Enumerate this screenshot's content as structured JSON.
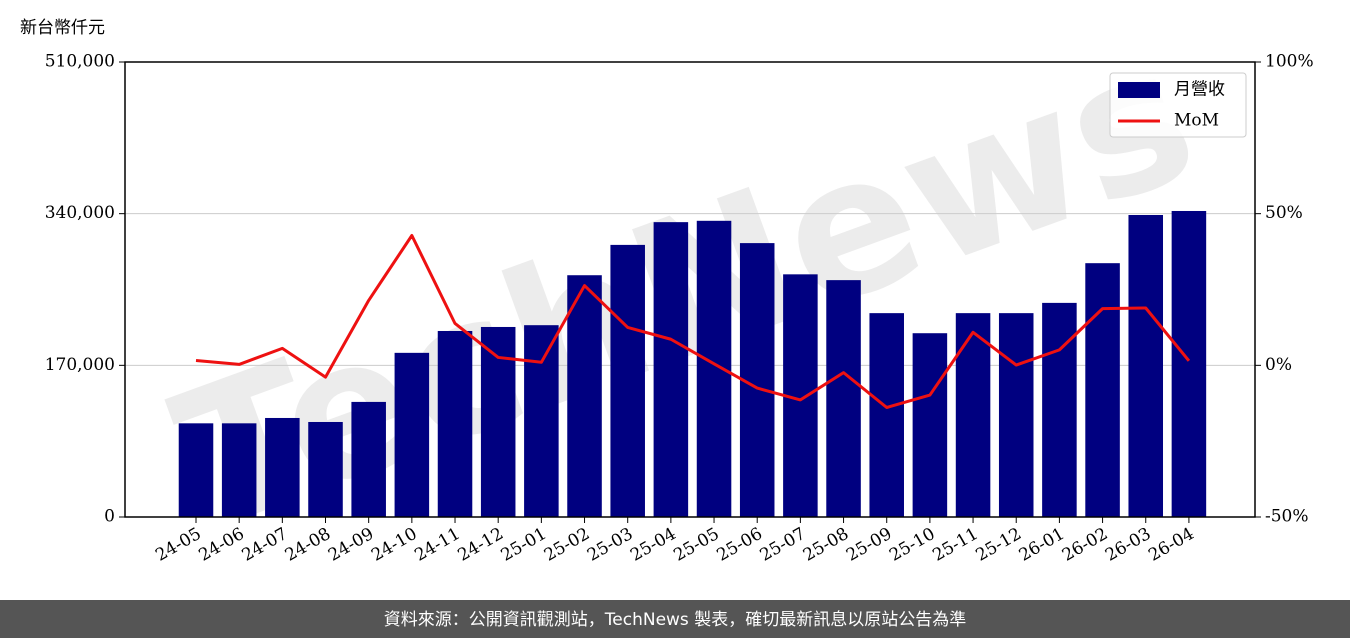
{
  "chart_data": {
    "type": "bar_line",
    "y_label": "新台幣仟元",
    "watermark": "TechNews",
    "footer": "資料來源：公開資訊觀測站，TechNews 製表，確切最新訊息以原站公告為準",
    "categories": [
      "24-05",
      "24-06",
      "24-07",
      "24-08",
      "24-09",
      "24-10",
      "24-11",
      "24-12",
      "25-01",
      "25-02",
      "25-03",
      "25-04",
      "25-05",
      "25-06",
      "25-07",
      "25-08",
      "25-09",
      "25-10",
      "25-11",
      "25-12",
      "26-01",
      "26-02",
      "26-03",
      "26-04"
    ],
    "series": [
      {
        "name": "月營收",
        "type": "bar",
        "color": "#000080",
        "values": [
          105000,
          105000,
          111000,
          106500,
          129000,
          184000,
          208500,
          213000,
          215000,
          271000,
          305000,
          330500,
          332000,
          307000,
          272000,
          265500,
          228500,
          206000,
          228500,
          228500,
          240000,
          284500,
          338500,
          343000
        ]
      },
      {
        "name": "MoM",
        "type": "line",
        "axis": "y2",
        "color": "#ee1111",
        "values": [
          1.6,
          0.3,
          5.6,
          -3.9,
          21.4,
          42.8,
          13.8,
          2.6,
          1.0,
          26.3,
          12.5,
          8.6,
          0.5,
          -7.5,
          -11.4,
          -2.4,
          -13.9,
          -9.8,
          10.9,
          0.1,
          5.1,
          18.7,
          18.9,
          1.5
        ]
      }
    ],
    "ylim": [
      0,
      510000
    ],
    "yticks": [
      0,
      {
        "value": 170000,
        "label": "170,000"
      },
      {
        "value": 340000,
        "label": "340,000"
      },
      {
        "value": 510000,
        "label": "510,000"
      }
    ],
    "y2lim": [
      -50,
      100
    ],
    "y2ticks": [
      {
        "value": -50,
        "label": "-50%"
      },
      {
        "value": 0,
        "label": "0%"
      },
      {
        "value": 50,
        "label": "50%"
      },
      {
        "value": 100,
        "label": "100%"
      }
    ],
    "grid": true,
    "legend": "upper right"
  }
}
